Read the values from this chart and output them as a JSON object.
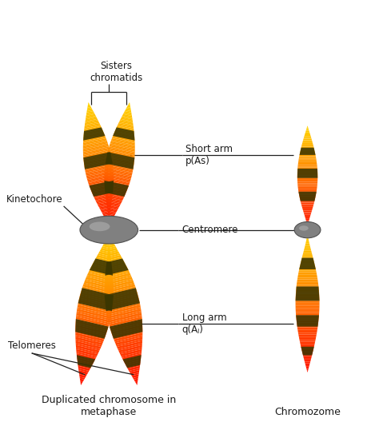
{
  "background_color": "#ffffff",
  "figsize": [
    4.74,
    5.38
  ],
  "dpi": 100,
  "labels": {
    "sisters_chromatids": "Sisters\nchromatids",
    "short_arm": "Short arm\np(As)",
    "centromere": "Centromere",
    "kinetochore": "Kinetochore",
    "long_arm": "Long arm\nq(Aⱼ)",
    "telomeres": "Telomeres",
    "duplicated": "Duplicated chromosome in\nmetaphase",
    "chromozome": "Chromozome"
  },
  "colors": {
    "band": "#3A3500",
    "centromere_fill": "#888888",
    "white": "#ffffff",
    "text": "#1a1a1a",
    "line": "#222222"
  }
}
